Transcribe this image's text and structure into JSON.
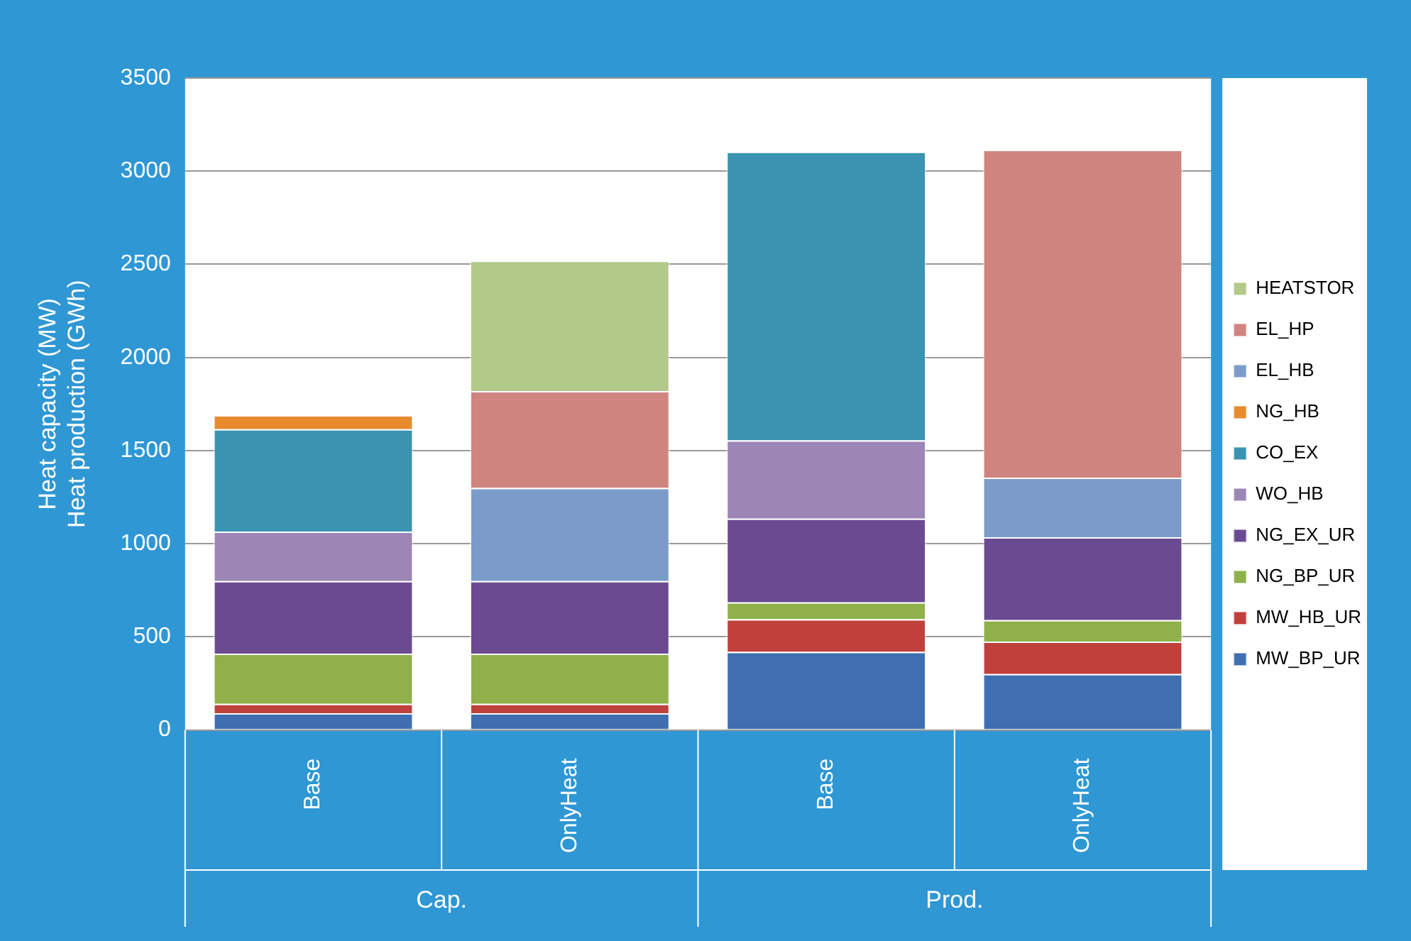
{
  "chart_data": {
    "type": "bar",
    "stacked": true,
    "ylabel": "Heat capacity (MW)\nHeat production (GWh)",
    "categories": [
      "Base",
      "OnlyHeat",
      "Base",
      "OnlyHeat"
    ],
    "annotations": [
      "Cap.",
      "Prod."
    ],
    "ylim": [
      0,
      3500
    ],
    "yticks": [
      0,
      500,
      1000,
      1500,
      2000,
      2500,
      3000,
      3500
    ],
    "grid": "y",
    "legend": "right",
    "series": [
      {
        "name": "MW_BP_UR",
        "color": "#3f6fb0",
        "values": [
          90,
          90,
          420,
          300
        ]
      },
      {
        "name": "MW_HB_UR",
        "color": "#c0403c",
        "values": [
          50,
          50,
          175,
          175
        ]
      },
      {
        "name": "NG_BP_UR",
        "color": "#8fb04a",
        "values": [
          270,
          270,
          90,
          115
        ]
      },
      {
        "name": "NG_EX_UR",
        "color": "#6a4b91",
        "values": [
          390,
          390,
          450,
          445
        ]
      },
      {
        "name": "WO_HB",
        "color": "#9b86b5",
        "values": [
          265,
          null,
          420,
          null
        ]
      },
      {
        "name": "CO_EX",
        "color": "#3a93b0",
        "values": [
          550,
          null,
          1550,
          null
        ]
      },
      {
        "name": "NG_HB",
        "color": "#e88a2e",
        "values": [
          75,
          null,
          null,
          null
        ]
      },
      {
        "name": "EL_HB",
        "color": "#7b9cc9",
        "values": [
          null,
          500,
          null,
          320
        ]
      },
      {
        "name": "EL_HP",
        "color": "#d08480",
        "values": [
          null,
          520,
          null,
          1760
        ]
      },
      {
        "name": "HEATSTOR",
        "color": "#b3c98a",
        "values": [
          null,
          700,
          null,
          null
        ]
      }
    ]
  }
}
